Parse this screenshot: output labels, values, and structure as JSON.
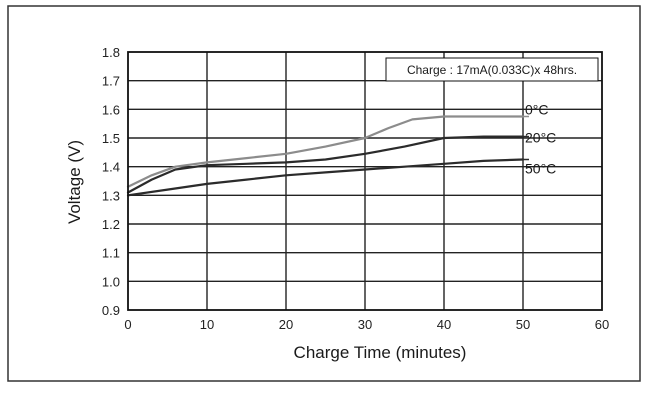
{
  "chart_data": {
    "type": "line",
    "title": "",
    "xlabel": "Charge Time (minutes)",
    "ylabel": "Voltage (V)",
    "xlim": [
      0,
      60
    ],
    "ylim": [
      0.9,
      1.8
    ],
    "x_ticks": [
      0,
      10,
      20,
      30,
      40,
      50,
      60
    ],
    "y_ticks": [
      0.9,
      1.0,
      1.1,
      1.2,
      1.3,
      1.4,
      1.5,
      1.6,
      1.7,
      1.8
    ],
    "x_tick_labels": [
      "0",
      "10",
      "20",
      "30",
      "40",
      "50",
      "60"
    ],
    "y_tick_labels": [
      "0.9",
      "1.0",
      "1.1",
      "1.2",
      "1.3",
      "1.4",
      "1.5",
      "1.6",
      "1.7",
      "1.8"
    ],
    "grid": true,
    "annotation": "Charge : 17mA(0.033C)x 48hrs.",
    "series": [
      {
        "name": "0°C",
        "color": "#8c8c8c",
        "x": [
          0,
          3,
          6,
          10,
          15,
          20,
          25,
          30,
          33,
          36,
          40,
          45,
          50
        ],
        "y": [
          1.33,
          1.37,
          1.4,
          1.415,
          1.43,
          1.445,
          1.47,
          1.5,
          1.535,
          1.565,
          1.575,
          1.575,
          1.575
        ]
      },
      {
        "name": "20°C",
        "color": "#2b2b2b",
        "x": [
          0,
          3,
          6,
          10,
          15,
          20,
          25,
          30,
          35,
          40,
          45,
          50
        ],
        "y": [
          1.31,
          1.355,
          1.39,
          1.405,
          1.41,
          1.415,
          1.425,
          1.445,
          1.47,
          1.5,
          1.505,
          1.505
        ]
      },
      {
        "name": "50°C",
        "color": "#2b2b2b",
        "x": [
          0,
          5,
          10,
          15,
          20,
          25,
          30,
          35,
          40,
          45,
          50
        ],
        "y": [
          1.3,
          1.32,
          1.34,
          1.355,
          1.37,
          1.38,
          1.39,
          1.4,
          1.41,
          1.42,
          1.425
        ]
      }
    ]
  }
}
